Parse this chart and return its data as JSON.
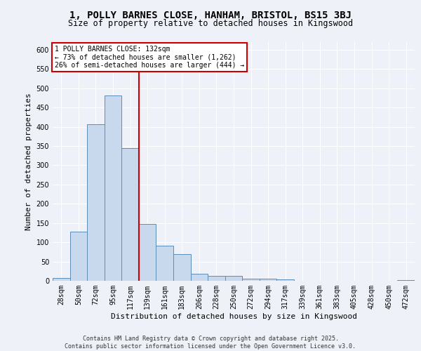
{
  "title1": "1, POLLY BARNES CLOSE, HANHAM, BRISTOL, BS15 3BJ",
  "title2": "Size of property relative to detached houses in Kingswood",
  "xlabel": "Distribution of detached houses by size in Kingswood",
  "ylabel": "Number of detached properties",
  "bar_labels": [
    "28sqm",
    "50sqm",
    "72sqm",
    "95sqm",
    "117sqm",
    "139sqm",
    "161sqm",
    "183sqm",
    "206sqm",
    "228sqm",
    "250sqm",
    "272sqm",
    "294sqm",
    "317sqm",
    "339sqm",
    "361sqm",
    "383sqm",
    "405sqm",
    "428sqm",
    "450sqm",
    "472sqm"
  ],
  "bar_values": [
    7,
    128,
    407,
    481,
    344,
    148,
    91,
    70,
    18,
    13,
    13,
    5,
    5,
    3,
    0,
    0,
    0,
    0,
    0,
    0,
    2
  ],
  "bar_color": "#c9d9ed",
  "bar_edgecolor": "#5b8db8",
  "vline_x": 4.5,
  "vline_color": "#cc0000",
  "ylim": [
    0,
    620
  ],
  "yticks": [
    0,
    50,
    100,
    150,
    200,
    250,
    300,
    350,
    400,
    450,
    500,
    550,
    600
  ],
  "annotation_text": "1 POLLY BARNES CLOSE: 132sqm\n← 73% of detached houses are smaller (1,262)\n26% of semi-detached houses are larger (444) →",
  "footer": "Contains HM Land Registry data © Crown copyright and database right 2025.\nContains public sector information licensed under the Open Government Licence v3.0.",
  "bg_color": "#eef2f8",
  "plot_bg_color": "#eef2f8",
  "grid_color": "#ffffff",
  "title1_fontsize": 10,
  "title2_fontsize": 8.5,
  "ylabel_fontsize": 8,
  "xlabel_fontsize": 8,
  "tick_fontsize": 7,
  "ann_fontsize": 7,
  "footer_fontsize": 6
}
